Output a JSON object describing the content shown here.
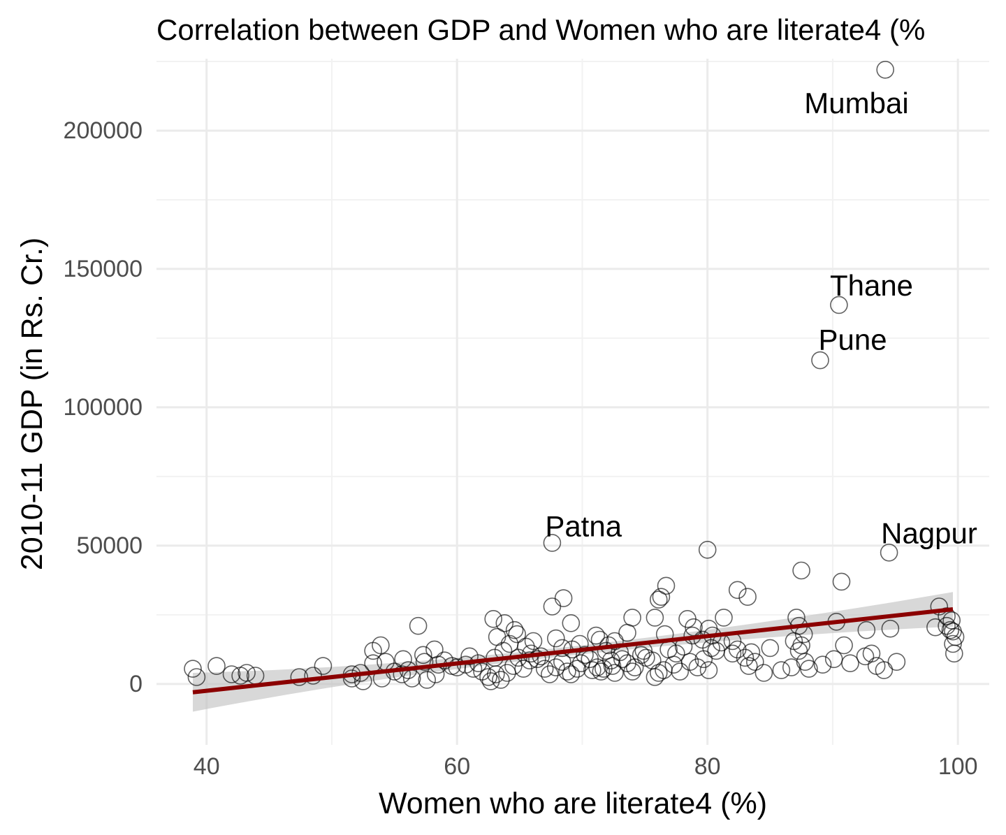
{
  "chart_data": {
    "type": "scatter",
    "title": "Correlation between GDP and Women who are literate4 (%",
    "xlabel": "Women who are literate4 (%)",
    "ylabel": "2010-11 GDP (in Rs. Cr.)",
    "xlim": [
      36,
      102.5
    ],
    "ylim": [
      -22000,
      226000
    ],
    "x_ticks": [
      40,
      60,
      80,
      100
    ],
    "x_tick_labels": [
      "40",
      "60",
      "80",
      "100"
    ],
    "y_ticks": [
      0,
      50000,
      100000,
      150000,
      200000
    ],
    "y_tick_labels": [
      "0",
      "50000",
      "100000",
      "150000",
      "200000"
    ],
    "grid": true,
    "legend": "none",
    "colors": {
      "points": "#000000",
      "trend": "#8b0000",
      "ribbon": "#bebebe"
    },
    "trend_line": {
      "method": "linear",
      "x_start": 38.9,
      "x_end": 99.6,
      "y_start": -3000,
      "y_end": 27000
    },
    "confidence_band": {
      "lower_start": -10000,
      "upper_start": 4000,
      "lower_end": 21000,
      "upper_end": 33500,
      "x_narrow": 68,
      "half_width_narrow": 1600
    },
    "annotations": [
      {
        "label": "Mumbai",
        "x": 91.9,
        "y": 210000
      },
      {
        "label": "Thane",
        "x": 93.1,
        "y": 144000
      },
      {
        "label": "Pune",
        "x": 91.6,
        "y": 124500
      },
      {
        "label": "Patna",
        "x": 70.1,
        "y": 57000
      },
      {
        "label": "Nagpur",
        "x": 97.7,
        "y": 54500
      }
    ],
    "points": [
      [
        94.2,
        222000
      ],
      [
        90.5,
        137000
      ],
      [
        89.0,
        117000
      ],
      [
        67.6,
        51000
      ],
      [
        94.5,
        47500
      ],
      [
        80.0,
        48500
      ],
      [
        87.5,
        41000
      ],
      [
        90.7,
        37000
      ],
      [
        76.7,
        35500
      ],
      [
        82.4,
        34000
      ],
      [
        83.2,
        31500
      ],
      [
        76.1,
        30500
      ],
      [
        76.3,
        31500
      ],
      [
        68.5,
        31000
      ],
      [
        67.6,
        28000
      ],
      [
        98.5,
        28000
      ],
      [
        99.1,
        24500
      ],
      [
        99.5,
        23000
      ],
      [
        99.1,
        21000
      ],
      [
        99.4,
        19500
      ],
      [
        98.2,
        20500
      ],
      [
        99.8,
        17000
      ],
      [
        99.6,
        19000
      ],
      [
        99.6,
        14500
      ],
      [
        99.7,
        11000
      ],
      [
        56.9,
        21000
      ],
      [
        62.9,
        23500
      ],
      [
        63.8,
        22000
      ],
      [
        64.6,
        19500
      ],
      [
        64.8,
        18000
      ],
      [
        63.2,
        17000
      ],
      [
        69.1,
        22000
      ],
      [
        74.0,
        24000
      ],
      [
        73.6,
        18500
      ],
      [
        75.8,
        24000
      ],
      [
        78.4,
        23500
      ],
      [
        78.9,
        20500
      ],
      [
        81.3,
        24000
      ],
      [
        80.1,
        20000
      ],
      [
        87.1,
        24000
      ],
      [
        87.3,
        21000
      ],
      [
        87.7,
        18000
      ],
      [
        90.3,
        22500
      ],
      [
        92.7,
        19500
      ],
      [
        94.6,
        20000
      ],
      [
        87.5,
        14000
      ],
      [
        87.3,
        12000
      ],
      [
        90.9,
        14000
      ],
      [
        82.0,
        15500
      ],
      [
        82.0,
        11000
      ],
      [
        83.5,
        11500
      ],
      [
        83.8,
        8000
      ],
      [
        85.0,
        13000
      ],
      [
        86.9,
        15500
      ],
      [
        80.4,
        17500
      ],
      [
        80.3,
        13000
      ],
      [
        79.6,
        16000
      ],
      [
        78.8,
        17500
      ],
      [
        76.6,
        18000
      ],
      [
        71.1,
        17500
      ],
      [
        71.4,
        16000
      ],
      [
        72.6,
        15500
      ],
      [
        72.1,
        14000
      ],
      [
        69.8,
        14500
      ],
      [
        67.9,
        16500
      ],
      [
        68.4,
        13000
      ],
      [
        66.1,
        15500
      ],
      [
        65.5,
        13500
      ],
      [
        64.2,
        14500
      ],
      [
        63.7,
        12000
      ],
      [
        63.0,
        9500
      ],
      [
        61.7,
        7500
      ],
      [
        60.0,
        6000
      ],
      [
        58.5,
        7000
      ],
      [
        57.4,
        8000
      ],
      [
        58.2,
        12500
      ],
      [
        57.3,
        10500
      ],
      [
        55.7,
        9000
      ],
      [
        54.3,
        8000
      ],
      [
        53.3,
        7500
      ],
      [
        53.3,
        12000
      ],
      [
        53.9,
        14000
      ],
      [
        52.3,
        4000
      ],
      [
        51.6,
        3500
      ],
      [
        49.3,
        6500
      ],
      [
        48.5,
        3000
      ],
      [
        47.4,
        2500
      ],
      [
        43.9,
        3000
      ],
      [
        43.2,
        4000
      ],
      [
        42.7,
        3000
      ],
      [
        42.0,
        3500
      ],
      [
        40.8,
        6500
      ],
      [
        39.2,
        2500
      ],
      [
        38.9,
        5500
      ],
      [
        51.6,
        2000
      ],
      [
        52.5,
        1000
      ],
      [
        54.0,
        2000
      ],
      [
        55.0,
        4500
      ],
      [
        55.6,
        3500
      ],
      [
        56.4,
        2000
      ],
      [
        56.1,
        5000
      ],
      [
        57.6,
        1500
      ],
      [
        58.3,
        3500
      ],
      [
        59.6,
        6500
      ],
      [
        60.7,
        7000
      ],
      [
        61.3,
        5500
      ],
      [
        62.0,
        4500
      ],
      [
        62.5,
        2500
      ],
      [
        62.7,
        1000
      ],
      [
        63.5,
        1500
      ],
      [
        63.1,
        3500
      ],
      [
        64.0,
        4000
      ],
      [
        64.5,
        6500
      ],
      [
        65.3,
        5500
      ],
      [
        65.8,
        8500
      ],
      [
        66.4,
        9000
      ],
      [
        67.0,
        5500
      ],
      [
        67.4,
        3500
      ],
      [
        67.9,
        6000
      ],
      [
        68.8,
        4500
      ],
      [
        68.4,
        8000
      ],
      [
        69.1,
        3500
      ],
      [
        69.6,
        5500
      ],
      [
        69.9,
        7500
      ],
      [
        70.6,
        9000
      ],
      [
        70.8,
        5000
      ],
      [
        71.2,
        6000
      ],
      [
        71.5,
        4500
      ],
      [
        71.7,
        5500
      ],
      [
        72.4,
        6500
      ],
      [
        72.6,
        4000
      ],
      [
        73.2,
        9000
      ],
      [
        73.6,
        7500
      ],
      [
        74.2,
        6000
      ],
      [
        74.0,
        4500
      ],
      [
        75.1,
        9500
      ],
      [
        75.6,
        8500
      ],
      [
        75.8,
        2500
      ],
      [
        76.1,
        4000
      ],
      [
        76.5,
        5000
      ],
      [
        77.3,
        7000
      ],
      [
        77.8,
        4500
      ],
      [
        78.6,
        8000
      ],
      [
        79.2,
        6000
      ],
      [
        79.7,
        9000
      ],
      [
        80.1,
        5000
      ],
      [
        80.7,
        12000
      ],
      [
        81.1,
        15000
      ],
      [
        82.4,
        12500
      ],
      [
        83.0,
        9500
      ],
      [
        83.3,
        6500
      ],
      [
        84.5,
        4000
      ],
      [
        85.9,
        5000
      ],
      [
        86.7,
        6000
      ],
      [
        87.8,
        8000
      ],
      [
        88.1,
        5500
      ],
      [
        89.2,
        7000
      ],
      [
        90.1,
        9000
      ],
      [
        91.4,
        7500
      ],
      [
        92.6,
        10000
      ],
      [
        93.5,
        6500
      ],
      [
        94.1,
        5000
      ],
      [
        95.1,
        8000
      ],
      [
        93.1,
        11000
      ],
      [
        78.1,
        13500
      ],
      [
        77.5,
        11000
      ],
      [
        74.9,
        12000
      ],
      [
        73.0,
        11500
      ],
      [
        71.9,
        12000
      ],
      [
        70.2,
        10500
      ],
      [
        69.2,
        12500
      ],
      [
        66.7,
        10000
      ],
      [
        65.9,
        11000
      ],
      [
        64.9,
        9500
      ],
      [
        61.0,
        10000
      ],
      [
        59.0,
        8500
      ],
      [
        72.3,
        8500
      ],
      [
        74.7,
        10500
      ],
      [
        76.9,
        12500
      ]
    ]
  }
}
